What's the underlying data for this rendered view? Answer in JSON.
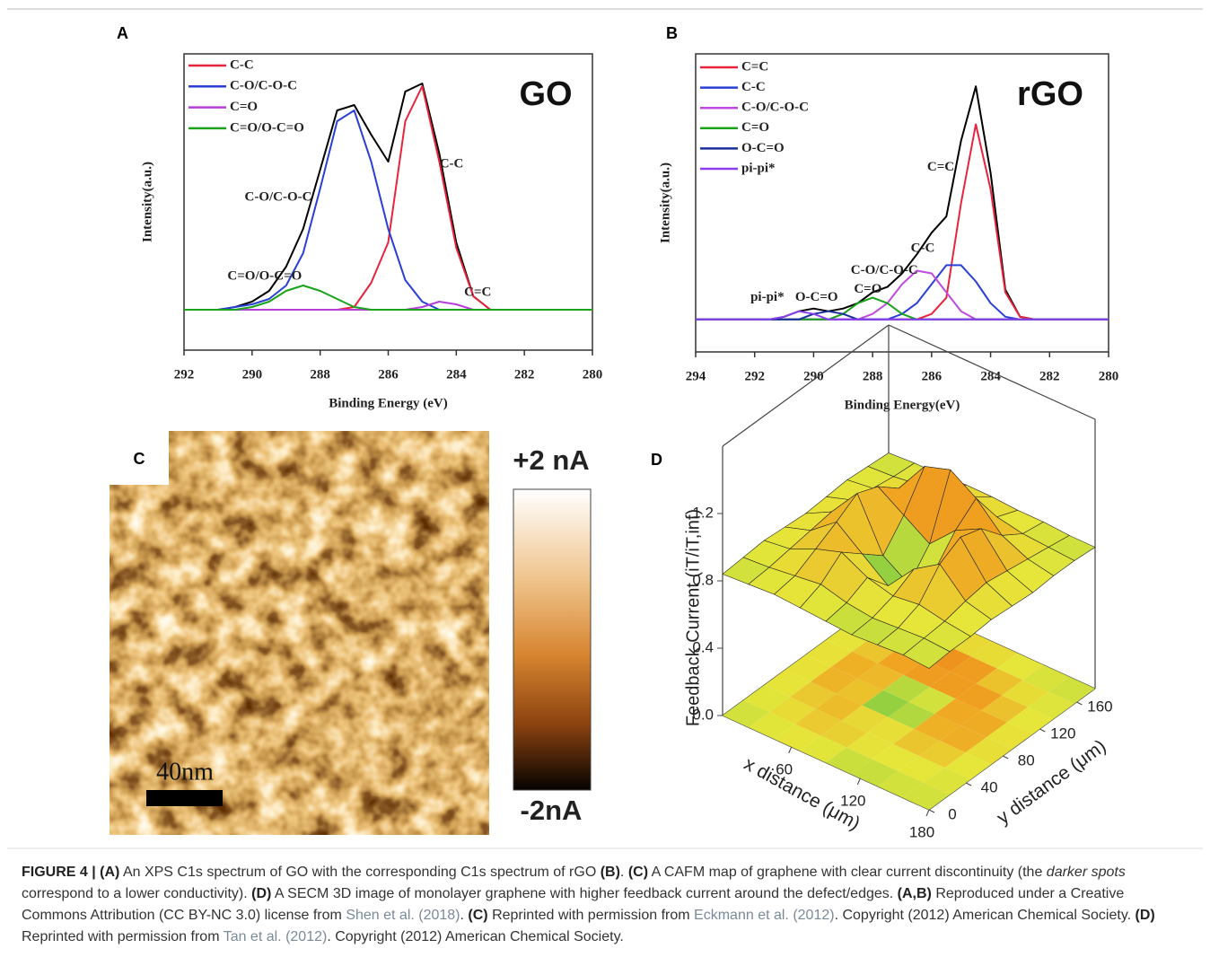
{
  "chart_data": [
    {
      "type": "line",
      "panel_label": "A",
      "title": "GO",
      "xlabel": "Binding Energy (eV)",
      "ylabel": "Intensity(a.u.)",
      "xlim": [
        292,
        280
      ],
      "xticks": [
        292,
        290,
        288,
        286,
        284,
        282,
        280
      ],
      "ylim": [
        0,
        1.1
      ],
      "x": [
        292,
        291.5,
        291,
        290.5,
        290,
        289.5,
        289,
        288.5,
        288,
        287.5,
        287,
        286.5,
        286,
        285.5,
        285,
        284.5,
        284,
        283.5,
        283,
        282.5,
        282,
        281.5,
        281,
        280.5,
        280
      ],
      "series": [
        {
          "color": "#000000",
          "values": [
            0.15,
            0.15,
            0.15,
            0.16,
            0.18,
            0.22,
            0.31,
            0.45,
            0.67,
            0.89,
            0.91,
            0.8,
            0.7,
            0.96,
            0.99,
            0.73,
            0.4,
            0.2,
            0.15,
            0.15,
            0.15,
            0.15,
            0.15,
            0.15,
            0.15
          ]
        },
        {
          "name": "C-C",
          "color": "#e8243c",
          "values": [
            0.15,
            0.15,
            0.15,
            0.15,
            0.15,
            0.15,
            0.15,
            0.15,
            0.15,
            0.15,
            0.16,
            0.25,
            0.4,
            0.85,
            0.98,
            0.7,
            0.38,
            0.2,
            0.15,
            0.15,
            0.15,
            0.15,
            0.15,
            0.15,
            0.15
          ]
        },
        {
          "name": "C-O/C-O-C",
          "color": "#2a3fd6",
          "values": [
            0.15,
            0.15,
            0.15,
            0.16,
            0.17,
            0.19,
            0.24,
            0.36,
            0.6,
            0.85,
            0.89,
            0.7,
            0.45,
            0.26,
            0.18,
            0.15,
            0.15,
            0.15,
            0.15,
            0.15,
            0.15,
            0.15,
            0.15,
            0.15,
            0.15
          ]
        },
        {
          "name": "C=O",
          "color": "#b53fd6",
          "values": [
            0.15,
            0.15,
            0.15,
            0.15,
            0.15,
            0.15,
            0.15,
            0.15,
            0.15,
            0.15,
            0.15,
            0.15,
            0.15,
            0.15,
            0.16,
            0.18,
            0.17,
            0.15,
            0.15,
            0.15,
            0.15,
            0.15,
            0.15,
            0.15,
            0.15
          ]
        },
        {
          "name": "C=O/O-C=O",
          "color": "#1aa31a",
          "values": [
            0.15,
            0.15,
            0.15,
            0.15,
            0.16,
            0.18,
            0.22,
            0.24,
            0.22,
            0.19,
            0.16,
            0.15,
            0.15,
            0.15,
            0.15,
            0.15,
            0.15,
            0.15,
            0.15,
            0.15,
            0.15,
            0.15,
            0.15,
            0.15,
            0.15
          ]
        }
      ],
      "annotations": [
        {
          "text": "C-C",
          "x": 284.14,
          "y": 0.69
        },
        {
          "text": "C-O/C-O-C",
          "x": 289.23,
          "y": 0.567
        },
        {
          "text": "C=O/O-C=O",
          "x": 289.63,
          "y": 0.273
        },
        {
          "text": "C=C",
          "x": 283.37,
          "y": 0.213
        }
      ]
    },
    {
      "type": "line",
      "panel_label": "B",
      "title": "rGO",
      "xlabel": "Binding Energy(eV)",
      "ylabel": "Intensity(a.u.)",
      "xlim": [
        294,
        280
      ],
      "xticks": [
        294,
        292,
        290,
        288,
        286,
        284,
        282,
        280
      ],
      "ylim": [
        0,
        1.1
      ],
      "x": [
        294,
        293.5,
        293,
        292.5,
        292,
        291.5,
        291,
        290.5,
        290,
        289.5,
        289,
        288.5,
        288,
        287.5,
        287,
        286.5,
        286,
        285.5,
        285,
        284.5,
        284,
        283.5,
        283,
        282.5,
        282,
        281.5,
        281,
        280.5,
        280
      ],
      "series": [
        {
          "color": "#000000",
          "values": [
            0.12,
            0.12,
            0.12,
            0.12,
            0.12,
            0.12,
            0.13,
            0.15,
            0.16,
            0.15,
            0.16,
            0.18,
            0.22,
            0.24,
            0.29,
            0.36,
            0.44,
            0.5,
            0.78,
            0.98,
            0.66,
            0.23,
            0.13,
            0.12,
            0.12,
            0.12,
            0.12,
            0.12,
            0.12
          ]
        },
        {
          "name": "C=C",
          "color": "#e8243c",
          "values": [
            0.12,
            0.12,
            0.12,
            0.12,
            0.12,
            0.12,
            0.12,
            0.12,
            0.12,
            0.12,
            0.12,
            0.12,
            0.12,
            0.12,
            0.12,
            0.12,
            0.14,
            0.2,
            0.55,
            0.84,
            0.6,
            0.22,
            0.13,
            0.12,
            0.12,
            0.12,
            0.12,
            0.12,
            0.12
          ]
        },
        {
          "name": "C-C",
          "color": "#2a3fd6",
          "values": [
            0.12,
            0.12,
            0.12,
            0.12,
            0.12,
            0.12,
            0.12,
            0.12,
            0.12,
            0.12,
            0.12,
            0.12,
            0.12,
            0.12,
            0.14,
            0.18,
            0.25,
            0.32,
            0.32,
            0.26,
            0.18,
            0.13,
            0.12,
            0.12,
            0.12,
            0.12,
            0.12,
            0.12,
            0.12
          ]
        },
        {
          "name": "C-O/C-O-C",
          "color": "#c04ae0",
          "values": [
            0.12,
            0.12,
            0.12,
            0.12,
            0.12,
            0.12,
            0.12,
            0.12,
            0.12,
            0.12,
            0.12,
            0.12,
            0.14,
            0.18,
            0.25,
            0.3,
            0.29,
            0.22,
            0.15,
            0.12,
            0.12,
            0.12,
            0.12,
            0.12,
            0.12,
            0.12,
            0.12,
            0.12,
            0.12
          ]
        },
        {
          "name": "C=O",
          "color": "#1aa31a",
          "values": [
            0.12,
            0.12,
            0.12,
            0.12,
            0.12,
            0.12,
            0.12,
            0.12,
            0.12,
            0.12,
            0.14,
            0.18,
            0.2,
            0.18,
            0.14,
            0.12,
            0.12,
            0.12,
            0.12,
            0.12,
            0.12,
            0.12,
            0.12,
            0.12,
            0.12,
            0.12,
            0.12,
            0.12,
            0.12
          ]
        },
        {
          "name": "O-C=O",
          "color": "#1a2f9e",
          "values": [
            0.12,
            0.12,
            0.12,
            0.12,
            0.12,
            0.12,
            0.12,
            0.12,
            0.14,
            0.15,
            0.14,
            0.12,
            0.12,
            0.12,
            0.12,
            0.12,
            0.12,
            0.12,
            0.12,
            0.12,
            0.12,
            0.12,
            0.12,
            0.12,
            0.12,
            0.12,
            0.12,
            0.12,
            0.12
          ]
        },
        {
          "name": "pi-pi*",
          "color": "#8a3ff0",
          "values": [
            0.12,
            0.12,
            0.12,
            0.12,
            0.12,
            0.12,
            0.13,
            0.15,
            0.14,
            0.12,
            0.12,
            0.12,
            0.12,
            0.12,
            0.12,
            0.12,
            0.12,
            0.12,
            0.12,
            0.12,
            0.12,
            0.12,
            0.12,
            0.12,
            0.12,
            0.12,
            0.12,
            0.12,
            0.12
          ]
        }
      ],
      "annotations": [
        {
          "text": "C=C",
          "x": 285.69,
          "y": 0.68
        },
        {
          "text": "C-C",
          "x": 286.3,
          "y": 0.38
        },
        {
          "text": "C-O/C-O-C",
          "x": 287.6,
          "y": 0.3
        },
        {
          "text": "C=O",
          "x": 288.16,
          "y": 0.23
        },
        {
          "text": "O-C=O",
          "x": 289.9,
          "y": 0.2
        },
        {
          "text": "pi-pi*",
          "x": 291.57,
          "y": 0.2
        }
      ]
    },
    {
      "type": "map",
      "panel_label": "C",
      "colorbar_labels": [
        "+2 nA",
        "-2nA"
      ],
      "scale_bar_label": "40nm"
    },
    {
      "type": "surface3d",
      "panel_label": "D",
      "xlabel": "x distance (μm)",
      "ylabel": "y distance (μm)",
      "zlabel": "Feedback Current (iT/iT,inf)",
      "xlim": [
        0,
        180
      ],
      "xticks": [
        60,
        120,
        180
      ],
      "ylim": [
        0,
        180
      ],
      "yticks": [
        0,
        40,
        80,
        120,
        160
      ],
      "zlim": [
        0,
        1.6
      ],
      "zticks": [
        {
          "value": 0,
          "label": "0.0"
        },
        0.4,
        0.8,
        1.2
      ],
      "x": [
        0,
        22.5,
        45,
        67.5,
        90,
        112.5,
        135,
        157.5,
        180
      ],
      "y": [
        0,
        22.5,
        45,
        67.5,
        90,
        112.5,
        135,
        157.5,
        180
      ],
      "z": [
        [
          0.84,
          0.85,
          0.86,
          0.85,
          0.84,
          0.83,
          0.84,
          0.85,
          0.84
        ],
        [
          0.85,
          0.86,
          0.88,
          0.9,
          0.86,
          0.84,
          0.85,
          0.86,
          0.85
        ],
        [
          0.86,
          0.88,
          0.95,
          1.0,
          0.92,
          0.88,
          0.9,
          0.87,
          0.85
        ],
        [
          0.85,
          0.9,
          1.02,
          0.9,
          0.78,
          0.95,
          1.05,
          0.9,
          0.86
        ],
        [
          0.84,
          0.92,
          1.1,
          0.8,
          0.7,
          0.85,
          1.12,
          0.92,
          0.85
        ],
        [
          0.85,
          0.9,
          1.05,
          0.95,
          0.85,
          1.0,
          1.08,
          0.9,
          0.84
        ],
        [
          0.86,
          0.88,
          0.95,
          1.15,
          1.2,
          1.1,
          0.95,
          0.88,
          0.85
        ],
        [
          0.85,
          0.86,
          0.88,
          0.92,
          0.95,
          0.9,
          0.87,
          0.86,
          0.85
        ],
        [
          0.84,
          0.85,
          0.85,
          0.86,
          0.86,
          0.85,
          0.85,
          0.84,
          0.84
        ]
      ],
      "colors": [
        "#2ab34a",
        "#e6e63a",
        "#f0a020",
        "#d83a10"
      ]
    }
  ],
  "caption": [
    "FIGURE 4 | ",
    "(A)",
    " An XPS C1s spectrum of GO with the corresponding C1s spectrum of rGO ",
    "(B)",
    ". ",
    "(C)",
    " A CAFM map of graphene with clear current discontinuity (the ",
    "darker spots",
    " correspond to a lower conductivity). ",
    "(D)",
    " A SECM 3D image of monolayer graphene with higher feedback current around the defect/edges. ",
    "(A,B)",
    " Reproduced under a Creative Commons Attribution (CC BY-NC 3.0) license from ",
    "Shen et al. (2018)",
    ". ",
    "(C)",
    " Reprinted with permission from ",
    "Eckmann et al. (2012)",
    ". Copyright (2012) American Chemical Society. ",
    "(D)",
    " Reprinted with permission from ",
    "Tan et al. (2012)",
    ". Copyright (2012) American Chemical Society."
  ]
}
